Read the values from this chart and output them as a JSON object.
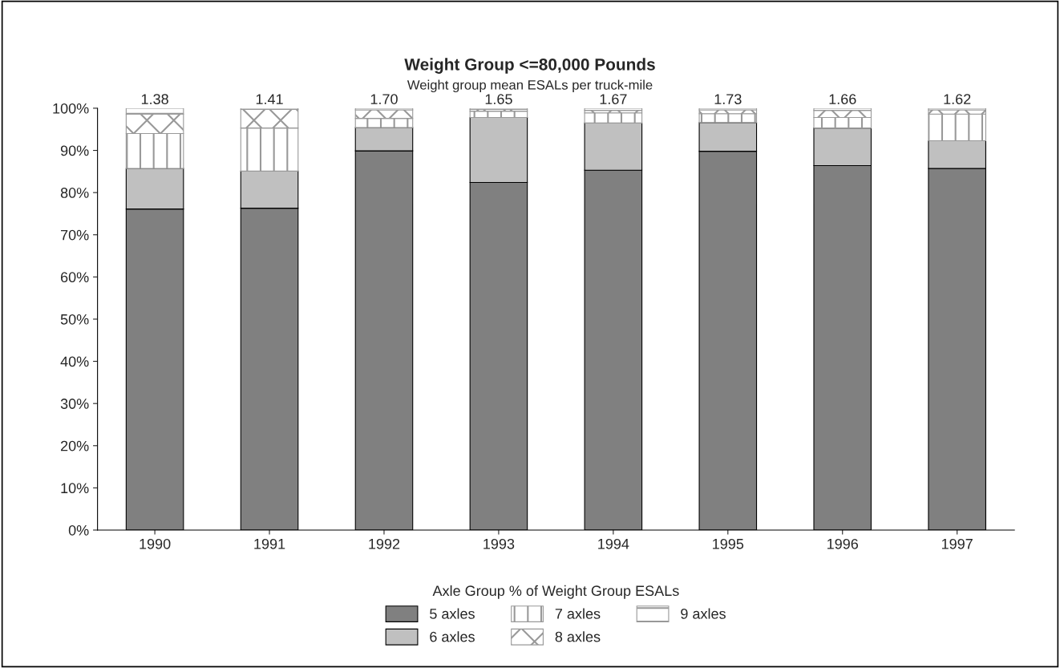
{
  "chart_data": {
    "type": "bar",
    "stacked": true,
    "title": "Weight Group <=80,000 Pounds",
    "subtitle": "Weight group mean ESALs per truck-mile",
    "categories": [
      "1990",
      "1991",
      "1992",
      "1993",
      "1994",
      "1995",
      "1996",
      "1997"
    ],
    "series": [
      {
        "name": "5 axles",
        "color": "#808080",
        "values": [
          76.1,
          76.3,
          89.9,
          82.4,
          85.3,
          89.8,
          86.4,
          85.7
        ]
      },
      {
        "name": "6 axles",
        "color": "#c0c0c0",
        "values": [
          9.6,
          8.8,
          5.5,
          15.4,
          11.2,
          6.8,
          8.9,
          6.6
        ]
      },
      {
        "name": "7 axles",
        "color": "#999999",
        "values": [
          8.3,
          10.2,
          2.2,
          1.5,
          2.4,
          2.1,
          2.5,
          6.3
        ]
      },
      {
        "name": "8 axles",
        "color": "#999999",
        "values": [
          4.6,
          4.4,
          2.0,
          0.4,
          0.6,
          0.9,
          1.7,
          1.0
        ]
      },
      {
        "name": "9 axles",
        "color": "#999999",
        "values": [
          1.4,
          0.3,
          0.4,
          0.3,
          0.5,
          0.4,
          0.5,
          0.4
        ]
      }
    ],
    "ylim": [
      0,
      100
    ],
    "yticks": [
      {
        "value": 0,
        "label": "0%"
      },
      {
        "value": 10,
        "label": "10%"
      },
      {
        "value": 20,
        "label": "20%"
      },
      {
        "value": 30,
        "label": "30%"
      },
      {
        "value": 40,
        "label": "40%"
      },
      {
        "value": 50,
        "label": "50%"
      },
      {
        "value": 60,
        "label": "60%"
      },
      {
        "value": 70,
        "label": "70%"
      },
      {
        "value": 80,
        "label": "80%"
      },
      {
        "value": 90,
        "label": "90%"
      },
      {
        "value": 100,
        "label": "100%"
      }
    ],
    "legend": "bottom",
    "legend_title": "Axle Group % of Weight Group ESALs",
    "grid": false,
    "annotations": [
      {
        "text": "1.38",
        "x": "1990",
        "y": 100
      },
      {
        "text": "1.41",
        "x": "1991",
        "y": 100
      },
      {
        "text": "1.70",
        "x": "1992",
        "y": 100
      },
      {
        "text": "1.65",
        "x": "1993",
        "y": 100
      },
      {
        "text": "1.67",
        "x": "1994",
        "y": 100
      },
      {
        "text": "1.73",
        "x": "1995",
        "y": 100
      },
      {
        "text": "1.66",
        "x": "1996",
        "y": 100
      },
      {
        "text": "1.62",
        "x": "1997",
        "y": 100
      }
    ]
  }
}
